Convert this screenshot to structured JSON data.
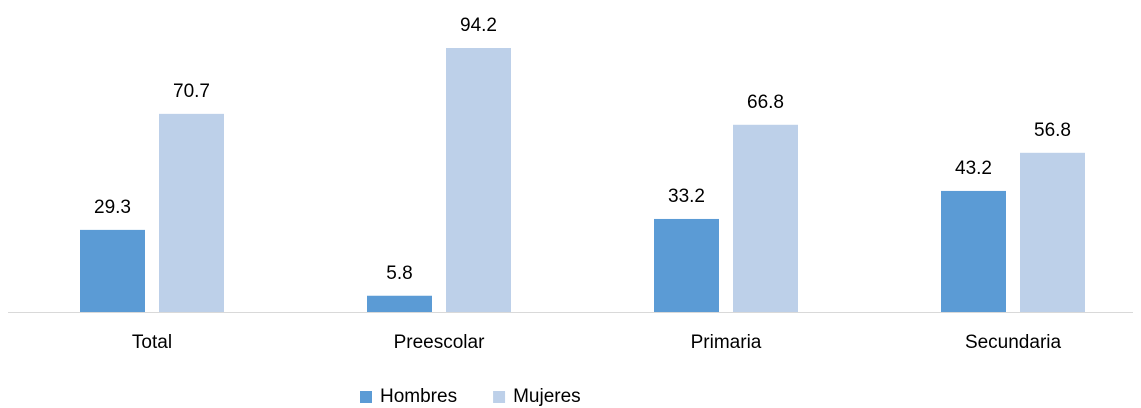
{
  "chart_data": {
    "type": "bar",
    "categories": [
      "Total",
      "Preescolar",
      "Primaria",
      "Secundaria"
    ],
    "series": [
      {
        "name": "Hombres",
        "color": "#5b9bd5",
        "values": [
          29.3,
          5.8,
          33.2,
          43.2
        ]
      },
      {
        "name": "Mujeres",
        "color": "#bdd0e9",
        "values": [
          70.7,
          94.2,
          66.8,
          56.8
        ]
      }
    ],
    "legend": "bottom"
  }
}
